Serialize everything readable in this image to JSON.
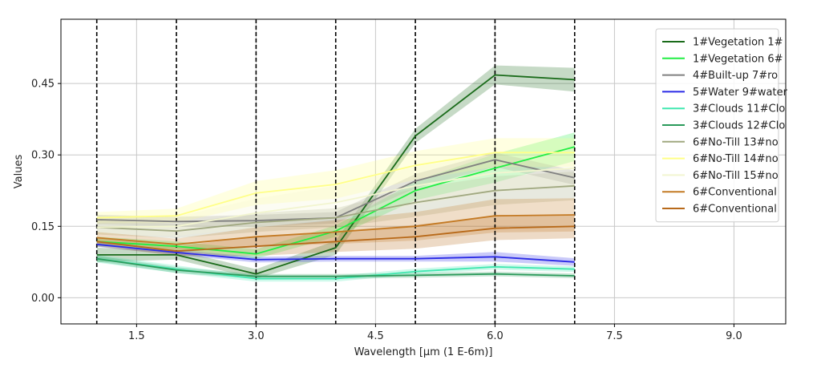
{
  "chart_data": {
    "type": "line",
    "title": "",
    "xlabel": "Wavelength [µm (1 E-6m)]",
    "ylabel": "Values",
    "xlim": [
      0.55,
      9.65
    ],
    "ylim": [
      -0.055,
      0.585
    ],
    "xticks": [
      1.5,
      3.0,
      4.5,
      6.0,
      7.5,
      9.0
    ],
    "xtick_labels": [
      "1.5",
      "3.0",
      "4.5",
      "6.0",
      "7.5",
      "9.0"
    ],
    "yticks": [
      0.0,
      0.15,
      0.3,
      0.45
    ],
    "ytick_labels": [
      "0.00",
      "0.15",
      "0.30",
      "0.45"
    ],
    "grid": true,
    "legend_position": "top-right",
    "vlines": [
      1,
      2,
      3,
      4,
      5,
      6,
      7
    ],
    "x": [
      1,
      2,
      3,
      4,
      5,
      6,
      7
    ],
    "series": [
      {
        "name": "1#Vegetation 1#",
        "color": "#1a6b1a",
        "values": [
          0.09,
          0.09,
          0.05,
          0.105,
          0.34,
          0.468,
          0.458
        ],
        "band": [
          0.015,
          0.01,
          0.01,
          0.015,
          0.015,
          0.02,
          0.025
        ]
      },
      {
        "name": "1#Vegetation 6#",
        "color": "#22ee44",
        "values": [
          0.118,
          0.108,
          0.092,
          0.14,
          0.225,
          0.272,
          0.317
        ],
        "band": [
          0.01,
          0.01,
          0.01,
          0.012,
          0.02,
          0.03,
          0.03
        ]
      },
      {
        "name": "4#Built-up 7#ro",
        "color": "#808080",
        "values": [
          0.164,
          0.16,
          0.162,
          0.168,
          0.245,
          0.29,
          0.252
        ],
        "band": [
          0.01,
          0.01,
          0.012,
          0.012,
          0.015,
          0.015,
          0.015
        ]
      },
      {
        "name": "5#Water 9#water",
        "color": "#2a2ae6",
        "values": [
          0.112,
          0.095,
          0.08,
          0.082,
          0.082,
          0.086,
          0.075
        ],
        "band": [
          0.005,
          0.005,
          0.006,
          0.006,
          0.006,
          0.01,
          0.008
        ]
      },
      {
        "name": "3#Clouds 11#Clo",
        "color": "#40e8b0",
        "values": [
          0.082,
          0.06,
          0.04,
          0.04,
          0.055,
          0.065,
          0.06
        ],
        "band": [
          0.008,
          0.008,
          0.006,
          0.006,
          0.006,
          0.006,
          0.006
        ]
      },
      {
        "name": "3#Clouds 12#Clo",
        "color": "#2a9a5a",
        "values": [
          0.082,
          0.058,
          0.045,
          0.045,
          0.047,
          0.05,
          0.046
        ],
        "band": [
          0.006,
          0.006,
          0.005,
          0.005,
          0.005,
          0.005,
          0.005
        ]
      },
      {
        "name": "6#No-Till 13#no",
        "color": "#a0a880",
        "values": [
          0.148,
          0.14,
          0.158,
          0.168,
          0.2,
          0.225,
          0.235
        ],
        "band": [
          0.015,
          0.015,
          0.02,
          0.02,
          0.03,
          0.03,
          0.03
        ]
      },
      {
        "name": "6#No-Till 14#no",
        "color": "#ffff88",
        "values": [
          0.168,
          0.172,
          0.22,
          0.238,
          0.278,
          0.305,
          0.305
        ],
        "band": [
          0.012,
          0.015,
          0.025,
          0.03,
          0.03,
          0.03,
          0.03
        ]
      },
      {
        "name": "6#No-Till 15#no",
        "color": "#f2f5d0",
        "values": [
          0.148,
          0.15,
          0.178,
          0.2,
          0.235,
          0.262,
          0.272
        ],
        "band": [
          0.015,
          0.02,
          0.03,
          0.035,
          0.04,
          0.04,
          0.04
        ]
      },
      {
        "name": "6#Conventional",
        "color": "#c47a24",
        "values": [
          0.126,
          0.112,
          0.128,
          0.138,
          0.15,
          0.172,
          0.174
        ],
        "band": [
          0.012,
          0.012,
          0.02,
          0.025,
          0.03,
          0.035,
          0.035
        ]
      },
      {
        "name": "6#Conventional",
        "color": "#b86a1a",
        "values": [
          0.118,
          0.098,
          0.108,
          0.118,
          0.128,
          0.146,
          0.15
        ],
        "band": [
          0.01,
          0.01,
          0.02,
          0.022,
          0.025,
          0.025,
          0.025
        ]
      }
    ]
  }
}
